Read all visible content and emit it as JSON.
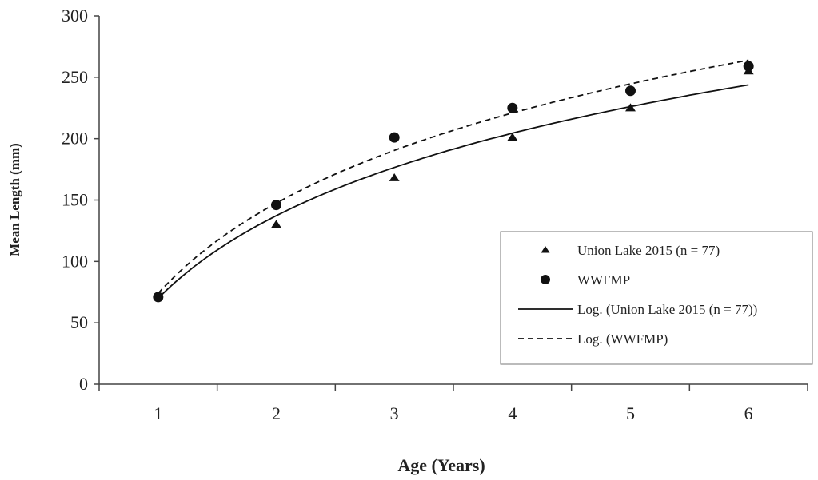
{
  "chart_data": {
    "type": "scatter",
    "title": "",
    "xlabel": "Age (Years)",
    "ylabel": "Mean Length (mm)",
    "xlim": [
      0.5,
      6.5
    ],
    "ylim": [
      0,
      300
    ],
    "x_ticks": [
      "1",
      "2",
      "3",
      "4",
      "5",
      "6"
    ],
    "y_ticks": [
      "0",
      "50",
      "100",
      "150",
      "200",
      "250",
      "300"
    ],
    "grid": false,
    "legend_position": "right",
    "series": [
      {
        "name": "Union Lake 2015 (n = 77)",
        "marker": "triangle",
        "x": [
          1,
          2,
          3,
          4,
          5,
          6
        ],
        "y": [
          71,
          130,
          168,
          201,
          225,
          255
        ]
      },
      {
        "name": "WWFMP",
        "marker": "circle",
        "x": [
          1,
          2,
          3,
          4,
          5,
          6
        ],
        "y": [
          71,
          146,
          201,
          225,
          239,
          259
        ]
      }
    ],
    "trendlines": [
      {
        "name": "Log. (Union Lake 2015 (n = 77))",
        "style": "solid",
        "type": "logarithmic",
        "a": 70,
        "b": 97
      },
      {
        "name": "Log. (WWFMP)",
        "style": "dashed",
        "type": "logarithmic",
        "a": 74,
        "b": 106
      }
    ],
    "colors": {
      "markers": "#111111",
      "lines": "#111111",
      "axis": "#444444"
    }
  }
}
